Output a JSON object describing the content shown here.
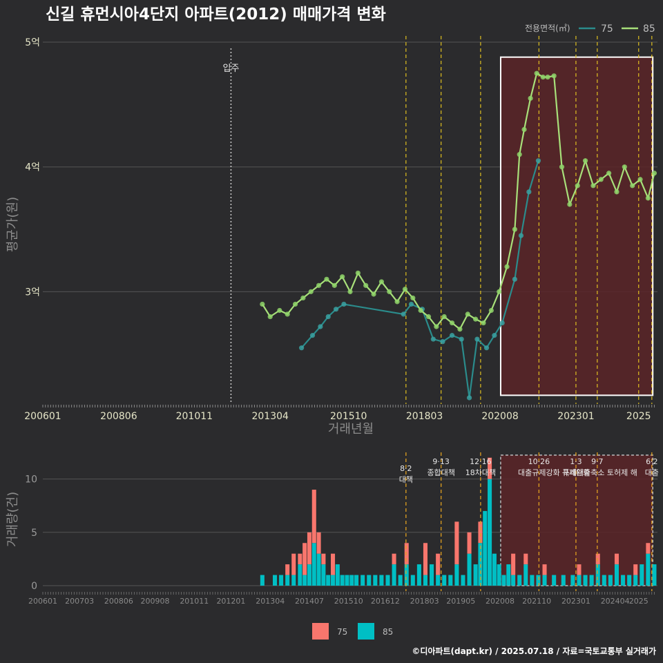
{
  "title": "신길 휴먼시아4단지 아파트(2012) 매매가격 변화",
  "footer": "©디아파트(dapt.kr) / 2025.07.18 / 자료=국토교통부 실거래가",
  "colors": {
    "bg": "#2b2b2d",
    "series75_line": "#2b8c8c",
    "series75_point": "#3aa0a0",
    "series85_line": "#a8e07a",
    "series85_point": "#8fd46a",
    "bar75": "#f8766d",
    "bar85": "#00bfc4",
    "policy_line": "#e0c020",
    "highlight_fill": "#5a2428",
    "grid": "#555555"
  },
  "chart_data": [
    {
      "type": "line",
      "title": "신길 휴먼시아4단지 아파트(2012) 매매가격 변화",
      "xlabel": "거래년월",
      "ylabel": "평균가(원)",
      "ylim": [
        2.1,
        5.05
      ],
      "xlim": [
        2006.0,
        2025.6
      ],
      "x_tick_labels": [
        "200601",
        "200806",
        "201011",
        "201304",
        "201510",
        "201803",
        "202008",
        "202301",
        "2025"
      ],
      "y_tick_labels": [
        "3억",
        "4억",
        "5억"
      ],
      "y_ticks": [
        3,
        4,
        5
      ],
      "legend_title": "전용면적(㎡)",
      "legend": [
        "75",
        "85"
      ],
      "annotation_move_in": {
        "label": "입주",
        "x": 2012.0
      },
      "policy_dates": [
        2017.58,
        2018.7,
        2019.96,
        2021.82,
        2023.0,
        2023.68,
        2025.0,
        2025.42
      ],
      "highlight_range": {
        "x": [
          2020.6,
          2025.45
        ],
        "y": [
          2.17,
          4.88
        ]
      },
      "series": [
        {
          "name": "75",
          "x": [
            2014.25,
            2014.6,
            2014.85,
            2015.1,
            2015.35,
            2015.6,
            2017.5,
            2017.75,
            2018.1,
            2018.45,
            2018.75,
            2019.05,
            2019.35,
            2019.6,
            2019.85,
            2020.15,
            2020.4,
            2020.65,
            2021.05,
            2021.25,
            2021.5,
            2021.8
          ],
          "values": [
            2.55,
            2.65,
            2.72,
            2.8,
            2.86,
            2.9,
            2.82,
            2.9,
            2.86,
            2.62,
            2.6,
            2.65,
            2.62,
            2.15,
            2.62,
            2.55,
            2.65,
            2.75,
            3.1,
            3.45,
            3.8,
            4.05
          ]
        },
        {
          "name": "85",
          "x": [
            2013.0,
            2013.25,
            2013.55,
            2013.8,
            2014.05,
            2014.3,
            2014.55,
            2014.8,
            2015.05,
            2015.3,
            2015.55,
            2015.8,
            2016.05,
            2016.3,
            2016.55,
            2016.8,
            2017.05,
            2017.3,
            2017.55,
            2017.8,
            2018.05,
            2018.3,
            2018.55,
            2018.8,
            2019.05,
            2019.3,
            2019.55,
            2019.8,
            2020.05,
            2020.3,
            2020.55,
            2020.8,
            2021.05,
            2021.2,
            2021.35,
            2021.55,
            2021.75,
            2021.95,
            2022.1,
            2022.3,
            2022.55,
            2022.8,
            2023.05,
            2023.3,
            2023.55,
            2023.8,
            2024.05,
            2024.3,
            2024.55,
            2024.8,
            2025.05,
            2025.3,
            2025.5
          ],
          "values": [
            2.9,
            2.8,
            2.85,
            2.82,
            2.9,
            2.95,
            3.0,
            3.05,
            3.1,
            3.05,
            3.12,
            3.0,
            3.15,
            3.05,
            2.98,
            3.08,
            3.0,
            2.92,
            3.02,
            2.95,
            2.85,
            2.8,
            2.72,
            2.8,
            2.75,
            2.7,
            2.82,
            2.78,
            2.75,
            2.85,
            3.0,
            3.2,
            3.5,
            4.1,
            4.3,
            4.55,
            4.75,
            4.72,
            4.72,
            4.73,
            4.0,
            3.7,
            3.85,
            4.05,
            3.85,
            3.9,
            3.95,
            3.8,
            4.0,
            3.85,
            3.9,
            3.75,
            3.95
          ]
        }
      ]
    },
    {
      "type": "bar",
      "xlabel": "",
      "ylabel": "거래량(건)",
      "ylim": [
        0,
        12.5
      ],
      "y_ticks": [
        0,
        5,
        10
      ],
      "x_tick_labels": [
        "200601",
        "200703",
        "200806",
        "200908",
        "201011",
        "201201",
        "201304",
        "201407",
        "201510",
        "201612",
        "201803",
        "201905",
        "202008",
        "202110",
        "202301",
        "202404",
        "2025"
      ],
      "legend": [
        "75",
        "85"
      ],
      "policy_labels": [
        {
          "date": "8·2",
          "name": "대책",
          "x": 2017.58
        },
        {
          "date": "9·13",
          "name": "종합대책",
          "x": 2018.7
        },
        {
          "date": "12·16",
          "name": "18차대책",
          "x": 2019.96
        },
        {
          "date": "10·26",
          "name": "대출규제강화",
          "x": 2021.82
        },
        {
          "date": "1·3",
          "name": "규제완화",
          "x": 2023.0
        },
        {
          "date": "9·7",
          "name": "특례대출축소 토허제 해",
          "x": 2023.68
        },
        {
          "date": "6·2",
          "name": "대출",
          "x": 2025.42
        }
      ],
      "series": [
        {
          "name": "85",
          "x": [
            2013.0,
            2013.4,
            2013.6,
            2013.8,
            2014.0,
            2014.2,
            2014.35,
            2014.5,
            2014.65,
            2014.8,
            2014.95,
            2015.1,
            2015.25,
            2015.4,
            2015.55,
            2015.7,
            2015.85,
            2016.0,
            2016.2,
            2016.4,
            2016.6,
            2016.8,
            2017.0,
            2017.2,
            2017.4,
            2017.6,
            2017.8,
            2018.0,
            2018.2,
            2018.4,
            2018.6,
            2018.8,
            2019.0,
            2019.2,
            2019.4,
            2019.6,
            2019.8,
            2019.95,
            2020.1,
            2020.25,
            2020.4,
            2020.55,
            2020.7,
            2020.85,
            2021.0,
            2021.2,
            2021.4,
            2021.6,
            2021.8,
            2022.0,
            2022.3,
            2022.6,
            2022.9,
            2023.1,
            2023.3,
            2023.5,
            2023.7,
            2023.9,
            2024.1,
            2024.3,
            2024.5,
            2024.7,
            2024.9,
            2025.1,
            2025.3,
            2025.5
          ],
          "values": [
            1,
            1,
            1,
            1,
            1,
            2,
            1,
            2,
            4,
            3,
            2,
            1,
            1,
            2,
            1,
            1,
            1,
            1,
            1,
            1,
            1,
            1,
            1,
            2,
            1,
            2,
            1,
            2,
            1,
            2,
            1,
            1,
            1,
            2,
            1,
            3,
            2,
            4,
            7,
            10,
            3,
            2,
            1,
            2,
            1,
            1,
            2,
            1,
            1,
            1,
            1,
            1,
            1,
            1,
            1,
            1,
            2,
            1,
            1,
            2,
            1,
            1,
            1,
            2,
            3,
            2
          ]
        },
        {
          "name": "75",
          "x": [
            2013.8,
            2014.0,
            2014.2,
            2014.35,
            2014.5,
            2014.65,
            2014.8,
            2014.95,
            2015.25,
            2017.2,
            2017.6,
            2018.2,
            2018.6,
            2019.2,
            2019.6,
            2019.95,
            2020.25,
            2021.0,
            2021.4,
            2022.0,
            2023.1,
            2023.7,
            2024.3,
            2024.9,
            2025.3
          ],
          "values": [
            1,
            2,
            1,
            3,
            3,
            5,
            2,
            1,
            2,
            1,
            2,
            3,
            2,
            4,
            2,
            2,
            2,
            2,
            1,
            1,
            1,
            1,
            1,
            1,
            1
          ]
        }
      ]
    }
  ]
}
